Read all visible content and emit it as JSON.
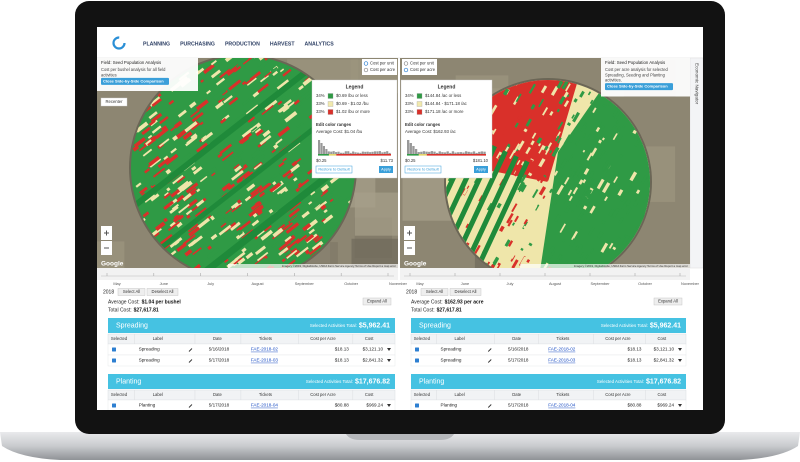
{
  "nav": {
    "items": [
      "PLANNING",
      "PURCHASING",
      "PRODUCTION",
      "HARVEST",
      "ANALYTICS"
    ]
  },
  "side_tab": "Economic Navigator",
  "panels": [
    {
      "info": {
        "title": "Field: Seed Population Analysis",
        "description": [
          "Cost per bushel analysis for all field",
          "activities"
        ],
        "button": "Close Side-by-Side Comparison"
      },
      "recenter": "Recenter",
      "radio": [
        "Cost per unit",
        "Cost per acre"
      ],
      "legend": {
        "title": "Legend",
        "rows": [
          {
            "share": "34%",
            "range": "$0.69 /bu or less",
            "color": "#2f9a45"
          },
          {
            "share": "33%",
            "range": "$0.69 - $1.02 /bu",
            "color": "#f1e9ad"
          },
          {
            "share": "33%",
            "range": "$1.02 /bu or more",
            "color": "#d9302a"
          }
        ],
        "edit": "Edit color ranges",
        "average": "Average Cost: $1.04 /bu",
        "min": "$0.25",
        "max": "$11.73",
        "restore": "Restore to Default",
        "apply": "Apply"
      },
      "google": "Google",
      "attribution": "Imagery ©2019, DigitalGlobe, USDA Farm Service Agency   Terms of Use   Report a map error",
      "timeline": {
        "months": [
          "May",
          "June",
          "July",
          "August",
          "September",
          "October",
          "November"
        ],
        "year": "2018",
        "select": "Select All",
        "deselect": "Deselect All"
      },
      "summary": {
        "average_label": "Average Cost:",
        "average_value": "$1.04 per bushel",
        "total_label": "Total Cost:",
        "total_value": "$27,617.81",
        "expand": "Expand All"
      },
      "sections": [
        {
          "name": "Spreading",
          "total_label": "Selected Activities Total:",
          "total_value": "$5,962.41",
          "columns": [
            "Selected",
            "Label",
            "Date",
            "Tickets",
            "Cost per Acre",
            "Cost"
          ],
          "rows": [
            [
              "Spreading",
              "5/16/2018",
              "FAE-2018-02",
              "$18.13",
              "$3,121.10"
            ],
            [
              "Spreading",
              "5/17/2018",
              "FAE-2018-03",
              "$18.13",
              "$2,841.32"
            ]
          ]
        },
        {
          "name": "Planting",
          "total_label": "Selected Activities Total:",
          "total_value": "$17,676.82",
          "columns": [
            "Selected",
            "Label",
            "Date",
            "Tickets",
            "Cost per Acre",
            "Cost"
          ],
          "rows": [
            [
              "Planting",
              "5/17/2018",
              "FAE-2018-04",
              "$80.88",
              "$969.24"
            ]
          ]
        }
      ]
    },
    {
      "info": {
        "title": "Field: Seed Population Analysis",
        "description": [
          "Cost per acre analysis for selected",
          "Spreading, Seeding and Planting",
          "activities."
        ],
        "button": "Close Side-by-Side Comparison"
      },
      "radio": [
        "Cost per unit",
        "Cost per acre"
      ],
      "legend": {
        "title": "Legend",
        "rows": [
          {
            "share": "34%",
            "range": "$144.84 /ac or less",
            "color": "#2f9a45"
          },
          {
            "share": "33%",
            "range": "$144.84 - $171.18 /ac",
            "color": "#f1e9ad"
          },
          {
            "share": "33%",
            "range": "$171.18 /ac or more",
            "color": "#d9302a"
          }
        ],
        "edit": "Edit color ranges",
        "average": "Average Cost: $162.93 /ac",
        "min": "$0.25",
        "max": "$181.10",
        "restore": "Restore to Default",
        "apply": "Apply"
      },
      "google": "Google",
      "attribution": "Imagery ©2019, DigitalGlobe, USDA Farm Service Agency   Terms of Use   Report a map error",
      "timeline": {
        "months": [
          "May",
          "June",
          "July",
          "August",
          "September",
          "October",
          "November"
        ],
        "year": "2018",
        "select": "Select All",
        "deselect": "Deselect All"
      },
      "summary": {
        "average_label": "Average Cost:",
        "average_value": "$162.93 per acre",
        "total_label": "Total Cost:",
        "total_value": "$27,617.81",
        "expand": "Expand All"
      },
      "sections": [
        {
          "name": "Spreading",
          "total_label": "Selected Activities Total:",
          "total_value": "$5,962.41",
          "columns": [
            "Selected",
            "Label",
            "Date",
            "Tickets",
            "Cost per Acre",
            "Cost"
          ],
          "rows": [
            [
              "Spreading",
              "5/16/2018",
              "FAE-2018-02",
              "$18.13",
              "$3,121.10"
            ],
            [
              "Spreading",
              "5/17/2018",
              "FAE-2018-03",
              "$18.13",
              "$2,841.32"
            ]
          ]
        },
        {
          "name": "Planting",
          "total_label": "Selected Activities Total:",
          "total_value": "$17,676.82",
          "columns": [
            "Selected",
            "Label",
            "Date",
            "Tickets",
            "Cost per Acre",
            "Cost"
          ],
          "rows": [
            [
              "Planting",
              "5/17/2018",
              "FAE-2018-04",
              "$80.88",
              "$969.24"
            ]
          ]
        }
      ]
    }
  ]
}
